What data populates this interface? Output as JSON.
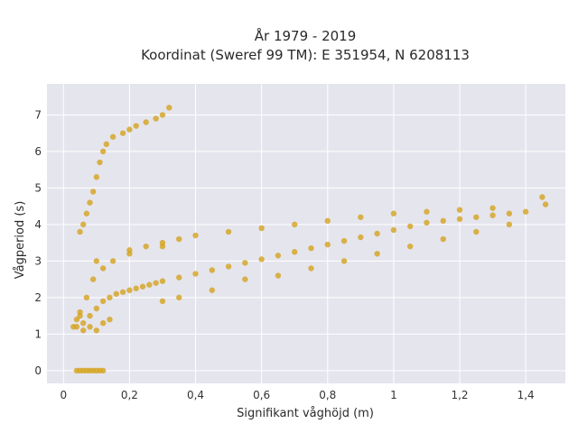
{
  "chart_data": {
    "type": "scatter",
    "title_lines": [
      "År 1979 - 2019",
      "Koordinat (Sweref 99 TM): E 351954, N 6208113"
    ],
    "xlabel": "Signifikant våghöjd (m)",
    "ylabel": "Vågperiod (s)",
    "xlim": [
      -0.05,
      1.52
    ],
    "ylim": [
      -0.35,
      7.85
    ],
    "x_ticks": [
      0,
      0.2,
      0.4,
      0.6,
      0.8,
      1,
      1.2,
      1.4
    ],
    "x_tick_labels": [
      "0",
      "0,2",
      "0,4",
      "0,6",
      "0,8",
      "1",
      "1,2",
      "1,4"
    ],
    "y_ticks": [
      0,
      1,
      2,
      3,
      4,
      5,
      6,
      7
    ],
    "y_tick_labels": [
      "0",
      "1",
      "2",
      "3",
      "4",
      "5",
      "6",
      "7"
    ],
    "grid": true,
    "colors": {
      "marker": "#d4a21d",
      "plot_bg": "#e5e5ee",
      "grid": "#ffffff"
    },
    "series": [
      {
        "x": [
          0.04,
          0.05,
          0.06,
          0.07,
          0.08,
          0.09,
          0.1,
          0.11,
          0.12,
          0.04,
          0.06,
          0.08,
          0.1,
          0.12,
          0.14,
          0.16,
          0.18,
          0.2,
          0.22,
          0.24,
          0.26,
          0.28,
          0.3,
          0.35,
          0.4,
          0.45,
          0.5,
          0.55,
          0.6,
          0.65,
          0.7,
          0.75,
          0.8,
          0.85,
          0.9,
          0.95,
          1.0,
          1.05,
          1.1,
          1.15,
          1.2,
          1.25,
          1.3,
          1.35,
          1.4,
          0.05,
          0.06,
          0.07,
          0.08,
          0.09,
          0.1,
          0.11,
          0.12,
          0.13,
          0.15,
          0.18,
          0.2,
          0.22,
          0.25,
          0.28,
          0.3,
          0.32,
          0.05,
          0.07,
          0.09,
          0.12,
          0.15,
          0.2,
          0.25,
          0.3,
          0.35,
          0.4,
          0.5,
          0.6,
          0.7,
          0.8,
          0.9,
          1.0,
          1.1,
          1.2,
          1.3,
          1.45,
          1.46,
          0.06,
          0.08,
          0.1,
          0.12,
          0.14,
          0.3,
          0.35,
          0.45,
          0.55,
          0.65,
          0.75,
          0.85,
          0.95,
          1.05,
          1.15,
          1.25,
          1.35,
          0.03,
          0.04,
          0.05,
          0.1,
          0.2,
          0.3
        ],
        "y": [
          0,
          0,
          0,
          0,
          0,
          0,
          0,
          0,
          0,
          1.2,
          1.3,
          1.5,
          1.7,
          1.9,
          2.0,
          2.1,
          2.15,
          2.2,
          2.25,
          2.3,
          2.35,
          2.4,
          2.45,
          2.55,
          2.65,
          2.75,
          2.85,
          2.95,
          3.05,
          3.15,
          3.25,
          3.35,
          3.45,
          3.55,
          3.65,
          3.75,
          3.85,
          3.95,
          4.05,
          4.1,
          4.15,
          4.2,
          4.25,
          4.3,
          4.35,
          3.8,
          4.0,
          4.3,
          4.6,
          4.9,
          5.3,
          5.7,
          6.0,
          6.2,
          6.4,
          6.5,
          6.6,
          6.7,
          6.8,
          6.9,
          7.0,
          7.2,
          1.5,
          2.0,
          2.5,
          2.8,
          3.0,
          3.2,
          3.4,
          3.5,
          3.6,
          3.7,
          3.8,
          3.9,
          4.0,
          4.1,
          4.2,
          4.3,
          4.35,
          4.4,
          4.45,
          4.75,
          4.55,
          1.1,
          1.2,
          1.1,
          1.3,
          1.4,
          1.9,
          2.0,
          2.2,
          2.5,
          2.6,
          2.8,
          3.0,
          3.2,
          3.4,
          3.6,
          3.8,
          4.0,
          1.2,
          1.4,
          1.6,
          3.0,
          3.3,
          3.4
        ]
      }
    ]
  }
}
